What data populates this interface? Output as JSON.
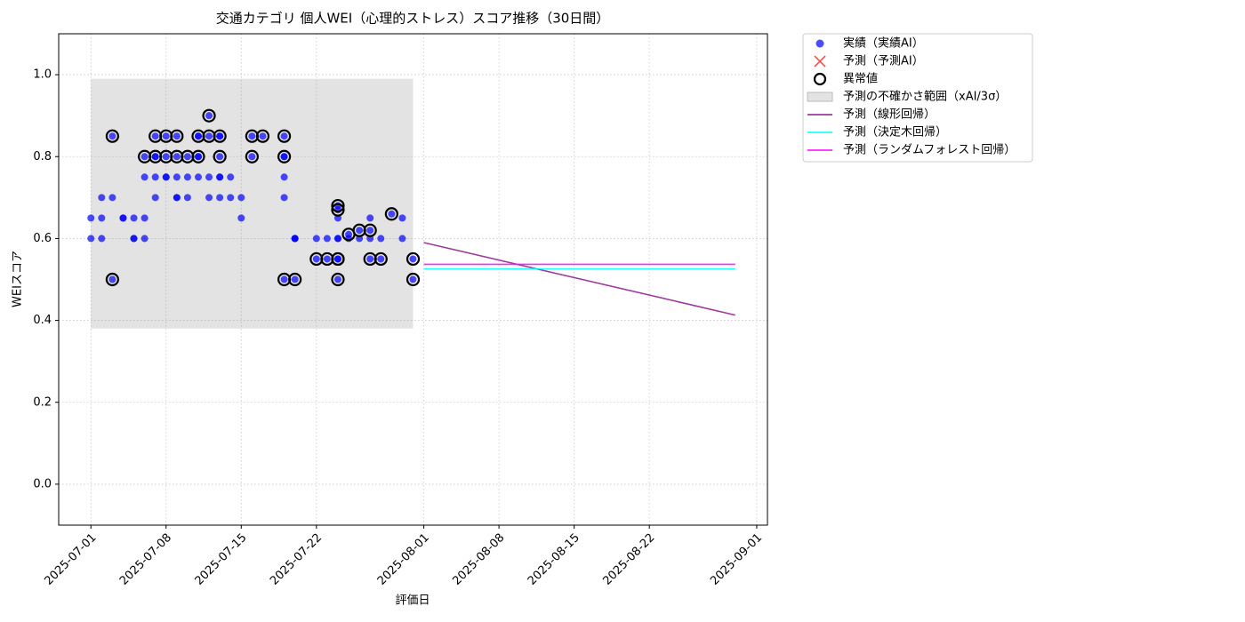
{
  "chart_data": {
    "type": "scatter",
    "title": "交通カテゴリ 個人WEI（心理的ストレス）スコア推移（30日間）",
    "x_label": "評価日",
    "y_label": "WEIスコア",
    "xlim": [
      "2025-06-28",
      "2025-09-02"
    ],
    "xticks": [
      "2025-07-01",
      "2025-07-08",
      "2025-07-15",
      "2025-07-22",
      "2025-08-01",
      "2025-08-08",
      "2025-08-15",
      "2025-08-22",
      "2025-09-01"
    ],
    "ylim": [
      -0.1,
      1.1
    ],
    "yticks": [
      {
        "value": 0,
        "label": "0.0"
      },
      0.2,
      0.4,
      0.6,
      0.8,
      {
        "value": 1,
        "label": "1.0"
      }
    ],
    "grid": true,
    "legend": "outside-upper-right",
    "series": [
      {
        "name": "予測の不確かさ範囲（xAI/3σ）",
        "type": "band",
        "color": "#808080",
        "x": [
          "2025-07-01",
          "2025-07-31"
        ],
        "lower": [
          0.38,
          0.38
        ],
        "upper": [
          0.99,
          0.99
        ]
      },
      {
        "name": "実績（実績AI）",
        "type": "scatter",
        "marker": "o",
        "color": "#0000ff",
        "x": [
          "2025-07-01",
          "2025-07-01",
          "2025-07-02",
          "2025-07-02",
          "2025-07-02",
          "2025-07-03",
          "2025-07-03",
          "2025-07-03",
          "2025-07-04",
          "2025-07-04",
          "2025-07-05",
          "2025-07-05",
          "2025-07-05",
          "2025-07-06",
          "2025-07-06",
          "2025-07-06",
          "2025-07-06",
          "2025-07-07",
          "2025-07-07",
          "2025-07-07",
          "2025-07-07",
          "2025-07-07",
          "2025-07-08",
          "2025-07-08",
          "2025-07-08",
          "2025-07-08",
          "2025-07-09",
          "2025-07-09",
          "2025-07-09",
          "2025-07-09",
          "2025-07-09",
          "2025-07-10",
          "2025-07-10",
          "2025-07-10",
          "2025-07-11",
          "2025-07-11",
          "2025-07-11",
          "2025-07-11",
          "2025-07-11",
          "2025-07-12",
          "2025-07-12",
          "2025-07-12",
          "2025-07-12",
          "2025-07-13",
          "2025-07-13",
          "2025-07-13",
          "2025-07-13",
          "2025-07-13",
          "2025-07-13",
          "2025-07-14",
          "2025-07-14",
          "2025-07-15",
          "2025-07-15",
          "2025-07-16",
          "2025-07-16",
          "2025-07-17",
          "2025-07-19",
          "2025-07-19",
          "2025-07-19",
          "2025-07-19",
          "2025-07-19",
          "2025-07-19",
          "2025-07-20",
          "2025-07-20",
          "2025-07-20",
          "2025-07-20",
          "2025-07-22",
          "2025-07-22",
          "2025-07-23",
          "2025-07-23",
          "2025-07-24",
          "2025-07-24",
          "2025-07-24",
          "2025-07-24",
          "2025-07-24",
          "2025-07-24",
          "2025-07-24",
          "2025-07-24",
          "2025-07-25",
          "2025-07-25",
          "2025-07-26",
          "2025-07-26",
          "2025-07-27",
          "2025-07-27",
          "2025-07-27",
          "2025-07-27",
          "2025-07-28",
          "2025-07-28",
          "2025-07-29",
          "2025-07-30",
          "2025-07-30",
          "2025-07-31",
          "2025-07-31"
        ],
        "values": [
          0.65,
          0.6,
          0.7,
          0.65,
          0.6,
          0.85,
          0.7,
          0.5,
          0.65,
          0.65,
          0.6,
          0.65,
          0.6,
          0.75,
          0.8,
          0.65,
          0.6,
          0.75,
          0.85,
          0.8,
          0.8,
          0.7,
          0.75,
          0.85,
          0.8,
          0.75,
          0.7,
          0.8,
          0.75,
          0.85,
          0.7,
          0.8,
          0.7,
          0.75,
          0.85,
          0.8,
          0.85,
          0.8,
          0.75,
          0.9,
          0.75,
          0.85,
          0.7,
          0.75,
          0.7,
          0.85,
          0.8,
          0.85,
          0.75,
          0.75,
          0.7,
          0.7,
          0.65,
          0.85,
          0.8,
          0.85,
          0.8,
          0.75,
          0.85,
          0.8,
          0.7,
          0.5,
          0.6,
          0.6,
          0.5,
          0.6,
          0.6,
          0.55,
          0.6,
          0.55,
          0.65,
          0.6,
          0.55,
          0.55,
          0.5,
          0.68,
          0.67,
          0.6,
          0.61,
          0.6,
          0.62,
          0.6,
          0.65,
          0.62,
          0.6,
          0.55,
          0.6,
          0.55,
          0.66,
          0.65,
          0.6,
          0.55,
          0.5
        ]
      },
      {
        "name": "予測（予測AI）",
        "type": "scatter",
        "marker": "x",
        "color": "#ff0000",
        "x": [],
        "values": []
      },
      {
        "name": "異常値",
        "type": "scatter",
        "marker": "ring",
        "color": "#000000",
        "x": [
          "2025-07-03",
          "2025-07-03",
          "2025-07-06",
          "2025-07-07",
          "2025-07-07",
          "2025-07-08",
          "2025-07-08",
          "2025-07-09",
          "2025-07-09",
          "2025-07-10",
          "2025-07-11",
          "2025-07-11",
          "2025-07-12",
          "2025-07-12",
          "2025-07-13",
          "2025-07-13",
          "2025-07-16",
          "2025-07-16",
          "2025-07-17",
          "2025-07-19",
          "2025-07-19",
          "2025-07-19",
          "2025-07-20",
          "2025-07-22",
          "2025-07-23",
          "2025-07-24",
          "2025-07-24",
          "2025-07-24",
          "2025-07-24",
          "2025-07-24",
          "2025-07-25",
          "2025-07-26",
          "2025-07-27",
          "2025-07-27",
          "2025-07-28",
          "2025-07-29",
          "2025-07-31",
          "2025-07-31"
        ],
        "values": [
          0.85,
          0.5,
          0.8,
          0.85,
          0.8,
          0.85,
          0.8,
          0.85,
          0.8,
          0.8,
          0.85,
          0.8,
          0.9,
          0.85,
          0.85,
          0.8,
          0.85,
          0.8,
          0.85,
          0.85,
          0.8,
          0.5,
          0.5,
          0.55,
          0.55,
          0.55,
          0.55,
          0.5,
          0.68,
          0.67,
          0.61,
          0.62,
          0.62,
          0.55,
          0.55,
          0.66,
          0.55,
          0.5
        ]
      },
      {
        "name": "予測（線形回帰）",
        "type": "line",
        "color": "#8b1a8b",
        "x": [
          "2025-08-01",
          "2025-08-30"
        ],
        "values": [
          0.59,
          0.413
        ]
      },
      {
        "name": "予測（決定木回帰）",
        "type": "line",
        "color": "#00ffff",
        "x": [
          "2025-08-01",
          "2025-08-30"
        ],
        "values": [
          0.526,
          0.526
        ]
      },
      {
        "name": "予測（ランダムフォレスト回帰）",
        "type": "line",
        "color": "#ff00ff",
        "x": [
          "2025-08-01",
          "2025-08-30"
        ],
        "values": [
          0.537,
          0.537
        ]
      }
    ]
  }
}
